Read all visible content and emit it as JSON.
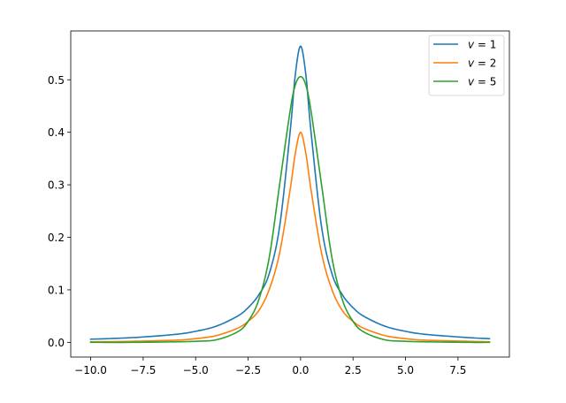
{
  "chart_data": {
    "type": "line",
    "title": "",
    "xlabel": "",
    "ylabel": "",
    "xlim": [
      -10.95,
      9.95
    ],
    "ylim": [
      -0.028,
      0.593
    ],
    "x_ticks": [
      -10.0,
      -7.5,
      -5.0,
      -2.5,
      0.0,
      2.5,
      5.0,
      7.5
    ],
    "x_tick_labels": [
      "−10.0",
      "−7.5",
      "−5.0",
      "−2.5",
      "0.0",
      "2.5",
      "5.0",
      "7.5"
    ],
    "y_ticks": [
      0.0,
      0.1,
      0.2,
      0.3,
      0.4,
      0.5
    ],
    "y_tick_labels": [
      "0.0",
      "0.1",
      "0.2",
      "0.3",
      "0.4",
      "0.5"
    ],
    "grid": false,
    "legend_position": "top-right",
    "series": [
      {
        "name": "v = 1",
        "name_var": "v",
        "name_eq": " = 1",
        "color": "#1f77b4",
        "x": [
          -10,
          -8,
          -6,
          -5,
          -4,
          -3,
          -2.5,
          -2,
          -1.5,
          -1,
          -0.5,
          -0.25,
          0,
          0.25,
          0.5,
          1,
          1.5,
          2,
          2.5,
          3,
          4,
          5,
          6,
          8,
          9
        ],
        "y": [
          0.006,
          0.009,
          0.015,
          0.021,
          0.031,
          0.05,
          0.066,
          0.09,
          0.13,
          0.22,
          0.4,
          0.51,
          0.564,
          0.51,
          0.4,
          0.22,
          0.13,
          0.09,
          0.066,
          0.05,
          0.031,
          0.021,
          0.015,
          0.009,
          0.007
        ]
      },
      {
        "name": "v = 2",
        "name_var": "v",
        "name_eq": " = 2",
        "color": "#ff7f0e",
        "x": [
          -10,
          -8,
          -6,
          -5,
          -4,
          -3,
          -2.5,
          -2,
          -1.5,
          -1,
          -0.5,
          -0.25,
          0,
          0.25,
          0.5,
          1,
          1.5,
          2,
          2.5,
          3,
          4,
          5,
          6,
          8,
          9
        ],
        "y": [
          0.001,
          0.002,
          0.004,
          0.007,
          0.013,
          0.027,
          0.04,
          0.06,
          0.1,
          0.17,
          0.29,
          0.36,
          0.4,
          0.36,
          0.29,
          0.17,
          0.1,
          0.06,
          0.04,
          0.027,
          0.013,
          0.007,
          0.004,
          0.002,
          0.001
        ]
      },
      {
        "name": "v = 5",
        "name_var": "v",
        "name_eq": " = 5",
        "color": "#2ca02c",
        "x": [
          -10,
          -8,
          -6,
          -5,
          -4,
          -3,
          -2.5,
          -2,
          -1.5,
          -1,
          -0.5,
          -0.25,
          0,
          0.25,
          0.5,
          1,
          1.5,
          2,
          2.5,
          3,
          4,
          5,
          6,
          8,
          9
        ],
        "y": [
          0.0,
          0.0,
          0.001,
          0.002,
          0.005,
          0.02,
          0.04,
          0.08,
          0.16,
          0.3,
          0.44,
          0.49,
          0.506,
          0.49,
          0.44,
          0.3,
          0.16,
          0.08,
          0.04,
          0.02,
          0.005,
          0.002,
          0.001,
          0.0,
          0.0
        ]
      }
    ]
  }
}
